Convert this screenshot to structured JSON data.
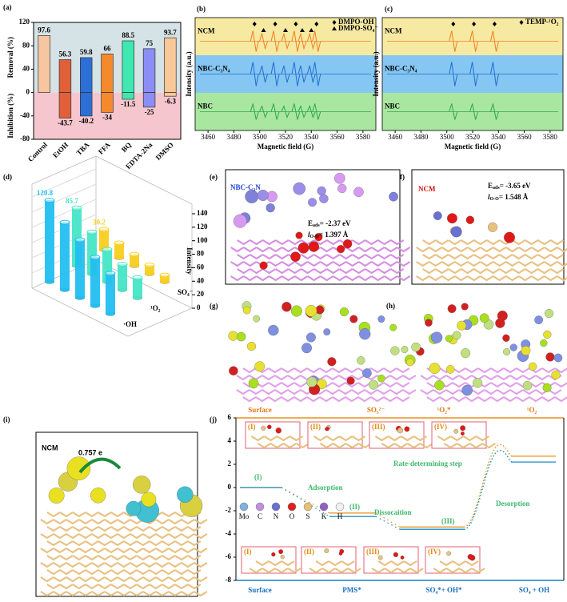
{
  "panel_labels": [
    "(a)",
    "(b)",
    "(c)",
    "(d)",
    "(e)",
    "(f)",
    "(g)",
    "(h)",
    "(i)",
    "(j)"
  ],
  "chart_data": [
    {
      "type": "bar",
      "categories": [
        "Control",
        "EtOH",
        "TBA",
        "FFA",
        "BQ",
        "EDTA-2Na",
        "DMSO"
      ],
      "colors": [
        "#f7c6a0",
        "#e0603a",
        "#2c6fd6",
        "#f58a2c",
        "#3ee8b0",
        "#8a8ef5",
        "#f8c898"
      ],
      "series": [
        {
          "values": [
            97.6,
            56.3,
            59.8,
            66,
            88.5,
            75,
            93.7
          ]
        },
        {
          "values": [
            null,
            -43.7,
            -40.2,
            -34,
            -11.5,
            -25,
            -6.3
          ]
        }
      ],
      "ylabel": "Removal (%)",
      "ylabel2": "Inhibition (%)",
      "ylim": [
        -80,
        120
      ],
      "yticks": [
        -80,
        -40,
        0,
        40,
        80,
        120
      ]
    },
    {
      "type": "epr",
      "xlabel": "Magnetic field (G)",
      "ylabel": "Intensity (a.u.)",
      "xlim": [
        3450,
        3590
      ],
      "xticks": [
        3460,
        3480,
        3500,
        3520,
        3540,
        3560,
        3580
      ],
      "series": [
        {
          "name": "NCM",
          "color": "#f08020",
          "band": "#f6e9a2"
        },
        {
          "name": "NBC-C₃N₄",
          "color": "#1f6fd0",
          "band": "#86c6f2"
        },
        {
          "name": "NBC",
          "color": "#2ea84a",
          "band": "#a9e6a0"
        }
      ],
      "annotations": [
        {
          "name": "DMPO-OH",
          "symbol": "diamond",
          "x": [
            3496,
            3512,
            3528,
            3544
          ]
        },
        {
          "name": "DMPO-SO₄⁻",
          "symbol": "triangle",
          "x": [
            3503,
            3520,
            3533,
            3540
          ]
        }
      ]
    },
    {
      "type": "epr",
      "xlabel": "Magnetic field (G)",
      "ylabel": "Intensity (a.u.)",
      "xlim": [
        3450,
        3590
      ],
      "xticks": [
        3460,
        3480,
        3500,
        3520,
        3540,
        3560,
        3580
      ],
      "series": [
        {
          "name": "NCM",
          "color": "#f08020",
          "band": "#f6e9a2"
        },
        {
          "name": "NBC-C₃N₄",
          "color": "#1f6fd0",
          "band": "#86c6f2"
        },
        {
          "name": "NBC",
          "color": "#2ea84a",
          "band": "#a9e6a0"
        }
      ],
      "annotations": [
        {
          "name": "TEMP-¹O₂",
          "symbol": "diamond",
          "x": [
            3505,
            3521,
            3537
          ]
        }
      ]
    },
    {
      "type": "bar3d",
      "zlabel": "Intensity",
      "zlim": [
        0,
        140
      ],
      "zticks": [
        0,
        20,
        40,
        60,
        80,
        100,
        120,
        140
      ],
      "categories": [
        null,
        null,
        null,
        null,
        null
      ],
      "series": [
        {
          "name": "·OH",
          "color": "#22bff0",
          "values": [
            120.8,
            100,
            86,
            72,
            60
          ]
        },
        {
          "name": "¹O₂",
          "color": "#45e6c6",
          "values": [
            85.7,
            62,
            48,
            38,
            30
          ]
        },
        {
          "name": "SO₄⁻",
          "color": "#f7cf1e",
          "values": [
            30.2,
            22,
            17,
            13,
            10
          ]
        }
      ]
    },
    {
      "type": "energy",
      "ylim": [
        -8,
        6
      ],
      "yticks": [
        -8,
        -6,
        -4,
        -2,
        0,
        2,
        4,
        6
      ],
      "categories": [
        "Surface",
        "PMS*",
        "SO₄*+ OH*",
        "SO₄ + OH"
      ],
      "series": [
        {
          "color": "#e8901e",
          "values": [
            0,
            -2.2,
            -3.4,
            2.7
          ],
          "ts": 3.7
        },
        {
          "color": "#1a8fc0",
          "values": [
            0,
            -2.5,
            -3.6,
            2.2
          ],
          "ts": 3.2
        }
      ],
      "annotations": [
        "(I)",
        "Adsorption",
        "(II)",
        "Dissocaition",
        "(III)",
        "Desorption",
        "Rate-determining step"
      ],
      "insets_top": [
        "(I)",
        "(II)",
        "(III)",
        "(IV)"
      ],
      "insets_bottom": [
        "(I)",
        "(II)",
        "(III)",
        "(IV)"
      ],
      "atoms": [
        {
          "name": "Mo",
          "color": "#7fb0e0"
        },
        {
          "name": "C",
          "color": "#c090e0"
        },
        {
          "name": "N",
          "color": "#6a70d0"
        },
        {
          "name": "O",
          "color": "#e02020"
        },
        {
          "name": "S",
          "color": "#e8c070"
        },
        {
          "name": "K",
          "color": "#9060c0"
        },
        {
          "name": "H",
          "color": "#f0f0f0"
        }
      ]
    }
  ],
  "images": {
    "e": {
      "title": "NBC-C₃N",
      "e_label": "E",
      "e_sub": "ads",
      "e_value": "= -2.37 eV",
      "l_label": "l",
      "l_sub": "O-O",
      "l_value": "= 1.397 Å"
    },
    "f": {
      "title": "NCM",
      "e_label": "E",
      "e_sub": "ads",
      "e_value": "= -3.65 eV",
      "l_label": "l",
      "l_sub": "O-O",
      "l_value": "= 1.548 Å"
    },
    "gh": {
      "labels": [
        "Surface",
        "SO₅²⁻",
        "¹O₂*",
        "¹O₂"
      ]
    },
    "i": {
      "title": "NCM",
      "charge": "0.757 e"
    }
  }
}
